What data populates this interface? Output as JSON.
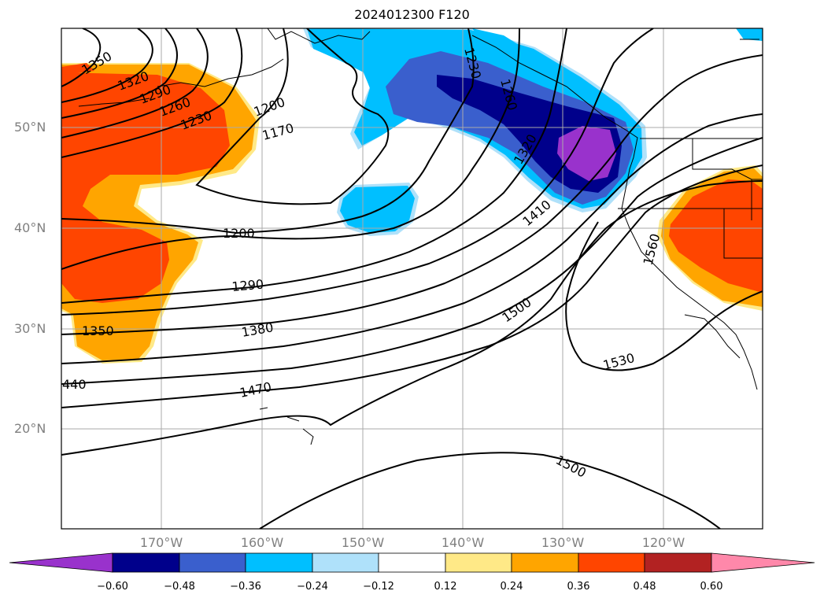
{
  "title": "2024012300 F120",
  "lat_labels": [
    "50°N",
    "40°N",
    "30°N",
    "20°N"
  ],
  "lon_labels": [
    "170°W",
    "160°W",
    "150°W",
    "140°W",
    "130°W",
    "120°W"
  ],
  "contour_labels": [
    "1350",
    "1320",
    "1290",
    "1260",
    "1230",
    "1200",
    "1170",
    "1200",
    "1290",
    "1380",
    "1350",
    "440",
    "1470",
    "1230",
    "1260",
    "1320",
    "1410",
    "1500",
    "1560",
    "1530",
    "1500"
  ],
  "colorbar": {
    "ticks": [
      "−0.60",
      "−0.48",
      "−0.36",
      "−0.24",
      "−0.12",
      "0.12",
      "0.24",
      "0.36",
      "0.48",
      "0.60"
    ],
    "colors": [
      "#9932cc",
      "#00008b",
      "#3a5fcd",
      "#00bfff",
      "#afe1fa",
      "#ffffff",
      "#ffe987",
      "#ffa500",
      "#ff4500",
      "#b22222",
      "#ff88aa"
    ]
  },
  "colors": {
    "contour": "#000000",
    "grid": "#aaaaaa",
    "axis_label": "#808080"
  }
}
